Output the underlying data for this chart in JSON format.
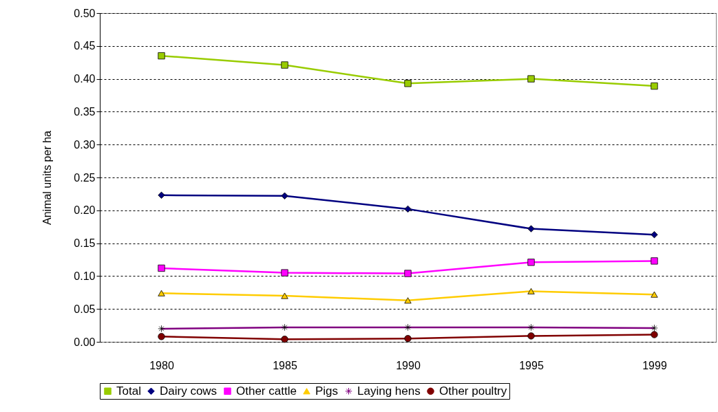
{
  "chart_data": {
    "type": "line",
    "ylabel": "Animal units per ha",
    "categories": [
      "1980",
      "1985",
      "1990",
      "1995",
      "1999"
    ],
    "series": [
      {
        "name": "Total",
        "color": "#99cc00",
        "marker": "square",
        "values": [
          0.435,
          0.421,
          0.393,
          0.4,
          0.389
        ]
      },
      {
        "name": "Dairy cows",
        "color": "#000080",
        "marker": "diamond",
        "values": [
          0.223,
          0.222,
          0.202,
          0.172,
          0.163
        ]
      },
      {
        "name": "Other cattle",
        "color": "#ff00ff",
        "marker": "square",
        "values": [
          0.112,
          0.105,
          0.104,
          0.121,
          0.123
        ]
      },
      {
        "name": "Pigs",
        "color": "#ffcc00",
        "marker": "triangle",
        "values": [
          0.074,
          0.07,
          0.063,
          0.077,
          0.072
        ]
      },
      {
        "name": "Laying hens",
        "color": "#800080",
        "marker": "cross",
        "values": [
          0.02,
          0.022,
          0.022,
          0.022,
          0.021
        ]
      },
      {
        "name": "Other poultry",
        "color": "#800000",
        "marker": "circle",
        "values": [
          0.008,
          0.004,
          0.005,
          0.009,
          0.011
        ]
      }
    ],
    "ylim": [
      0,
      0.5
    ],
    "yticks": [
      {
        "value": 0,
        "label": "0.00"
      },
      {
        "value": 0.05,
        "label": "0.05"
      },
      {
        "value": 0.1,
        "label": "0.10"
      },
      {
        "value": 0.15,
        "label": "0.15"
      },
      {
        "value": 0.2,
        "label": "0.20"
      },
      {
        "value": 0.25,
        "label": "0.25"
      },
      {
        "value": 0.3,
        "label": "0.30"
      },
      {
        "value": 0.35,
        "label": "0.35"
      },
      {
        "value": 0.4,
        "label": "0.40"
      },
      {
        "value": 0.45,
        "label": "0.45"
      },
      {
        "value": 0.5,
        "label": "0.50"
      }
    ],
    "grid": "y",
    "legend": "bottom",
    "line_style": "solid"
  }
}
